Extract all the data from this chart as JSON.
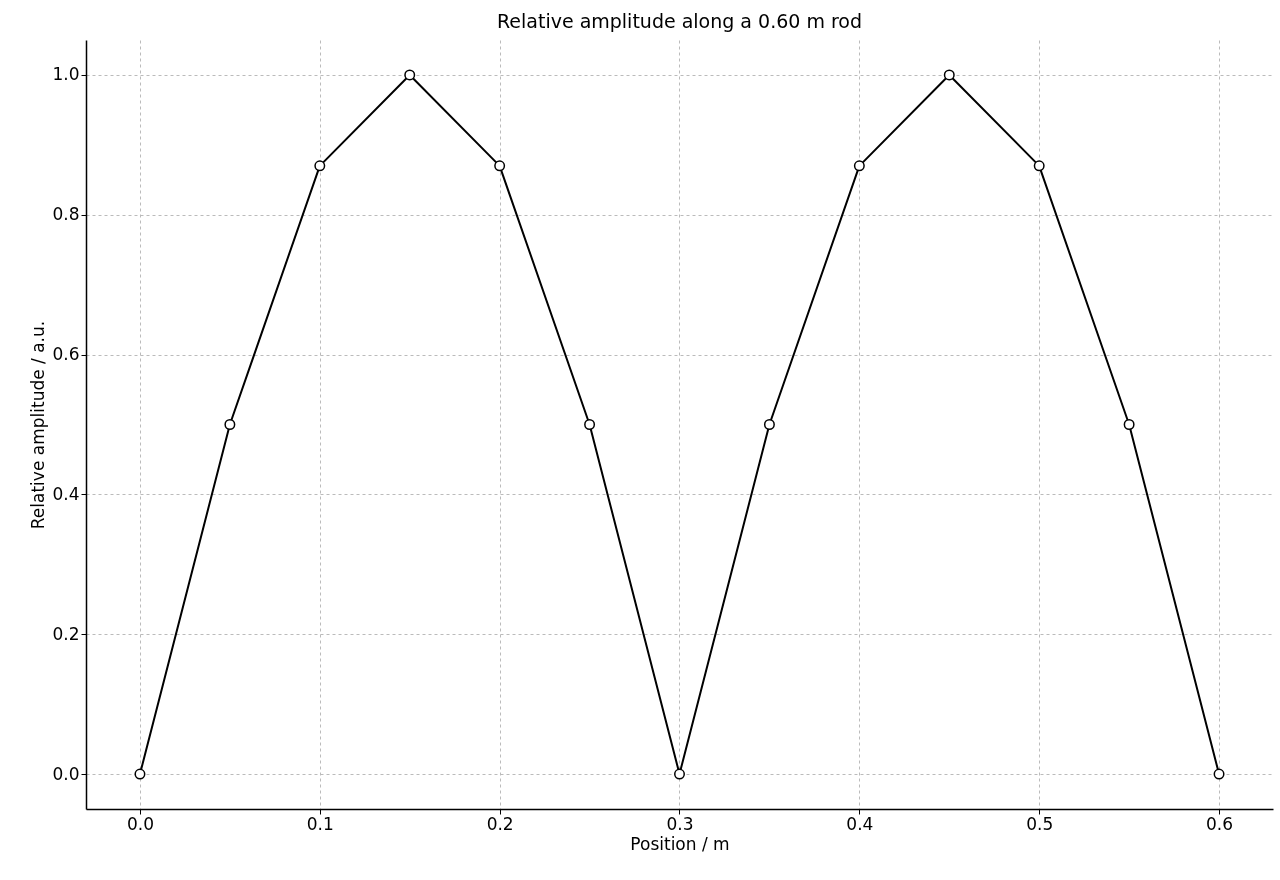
{
  "chart_data": {
    "type": "line",
    "title": "Relative amplitude along a 0.60 m rod",
    "xlabel": "Position / m",
    "ylabel": "Relative amplitude / a.u.",
    "x": [
      0,
      0.05,
      0.1,
      0.15,
      0.2,
      0.25,
      0.3,
      0.35,
      0.4,
      0.45,
      0.5,
      0.55,
      0.6
    ],
    "series": [
      {
        "color": "#000000",
        "values": [
          0,
          0.5,
          0.87,
          1.0,
          0.87,
          0.5,
          0,
          0.5,
          0.87,
          1.0,
          0.87,
          0.5,
          0
        ]
      }
    ],
    "xlim": [
      -0.03,
      0.63
    ],
    "ylim": [
      -0.05,
      1.05
    ],
    "xticks": [
      {
        "value": 0,
        "label": "0.0"
      },
      0.1,
      0.2,
      0.3,
      0.4,
      0.5,
      0.6
    ],
    "yticks": [
      {
        "value": 0,
        "label": "0.0"
      },
      0.2,
      0.4,
      0.6,
      0.8,
      {
        "value": 1,
        "label": "1.0"
      }
    ],
    "grid": true,
    "marker": "circle",
    "line_style": "solid"
  }
}
